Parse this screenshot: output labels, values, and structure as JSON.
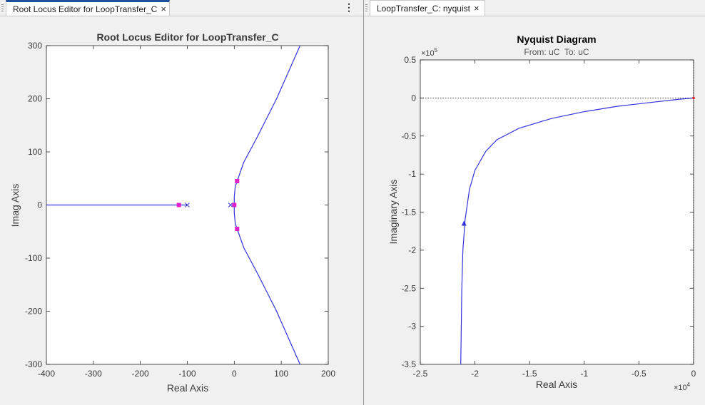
{
  "left_tab": {
    "label": "Root Locus Editor for LoopTransfer_C",
    "close": "×",
    "menu": "⋮"
  },
  "right_tab": {
    "label": "LoopTransfer_C: nyquist",
    "close": "×"
  },
  "colors": {
    "locus": "#3333dd",
    "marker": "#e020c8",
    "pole": "#3333dd",
    "tab_accent": "#1e4f9a"
  },
  "chart_data": [
    {
      "type": "line",
      "title": "Root Locus Editor for LoopTransfer_C",
      "xlabel": "Real Axis",
      "ylabel": "Imag Axis",
      "xlim": [
        -400,
        200
      ],
      "ylim": [
        -300,
        300
      ],
      "xticks": [
        "-400",
        "-300",
        "-200",
        "-100",
        "0",
        "100",
        "200"
      ],
      "yticks": [
        "300",
        "200",
        "100",
        "0",
        "-100",
        "-200",
        "-300"
      ],
      "grid": false,
      "series": [
        {
          "values": [
            [
              -400,
              0
            ],
            [
              -100,
              0
            ]
          ]
        },
        {
          "values": [
            [
              -5,
              0
            ],
            [
              0,
              0
            ]
          ]
        },
        {
          "values": [
            [
              0,
              0
            ],
            [
              0,
              15
            ],
            [
              2,
              35
            ],
            [
              6,
              45
            ],
            [
              20,
              80
            ],
            [
              50,
              130
            ],
            [
              90,
              200
            ],
            [
              140,
              300
            ]
          ]
        },
        {
          "values": [
            [
              0,
              0
            ],
            [
              0,
              -15
            ],
            [
              2,
              -35
            ],
            [
              6,
              -45
            ],
            [
              20,
              -80
            ],
            [
              50,
              -130
            ],
            [
              90,
              -200
            ],
            [
              140,
              -300
            ]
          ]
        }
      ],
      "poles": [
        [
          -100,
          0
        ],
        [
          -8,
          0
        ]
      ],
      "closed_loop_poles": [
        [
          -118,
          0
        ],
        [
          6,
          45
        ],
        [
          6,
          -45
        ],
        [
          0,
          0
        ]
      ]
    },
    {
      "type": "line",
      "title": "Nyquist Diagram",
      "subtitle": "From: uC  To: uC",
      "xlabel": "Real Axis",
      "ylabel": "Imaginary Axis",
      "xlim": [
        -2.5,
        0
      ],
      "ylim": [
        -3.5,
        0.5
      ],
      "x_exponent": "×10",
      "x_exponent_power": "4",
      "y_exponent": "×10",
      "y_exponent_power": "5",
      "xticks": [
        "-2.5",
        "-2",
        "-1.5",
        "-1",
        "-0.5",
        "0"
      ],
      "yticks": [
        "0.5",
        "0",
        "-0.5",
        "-1",
        "-1.5",
        "-2",
        "-2.5",
        "-3",
        "-3.5"
      ],
      "grid": false,
      "series": [
        {
          "values": [
            [
              -2.13,
              -3.5
            ],
            [
              -2.12,
              -2.5
            ],
            [
              -2.11,
              -2.0
            ],
            [
              -2.09,
              -1.6
            ],
            [
              -2.05,
              -1.2
            ],
            [
              -2.0,
              -0.95
            ],
            [
              -1.9,
              -0.7
            ],
            [
              -1.8,
              -0.55
            ],
            [
              -1.6,
              -0.4
            ],
            [
              -1.3,
              -0.27
            ],
            [
              -1.0,
              -0.18
            ],
            [
              -0.7,
              -0.11
            ],
            [
              -0.4,
              -0.06
            ],
            [
              -0.15,
              -0.02
            ],
            [
              0,
              0
            ]
          ]
        }
      ],
      "arrow_at": [
        -2.1,
        -1.65
      ],
      "reference_line_y": 0
    }
  ]
}
